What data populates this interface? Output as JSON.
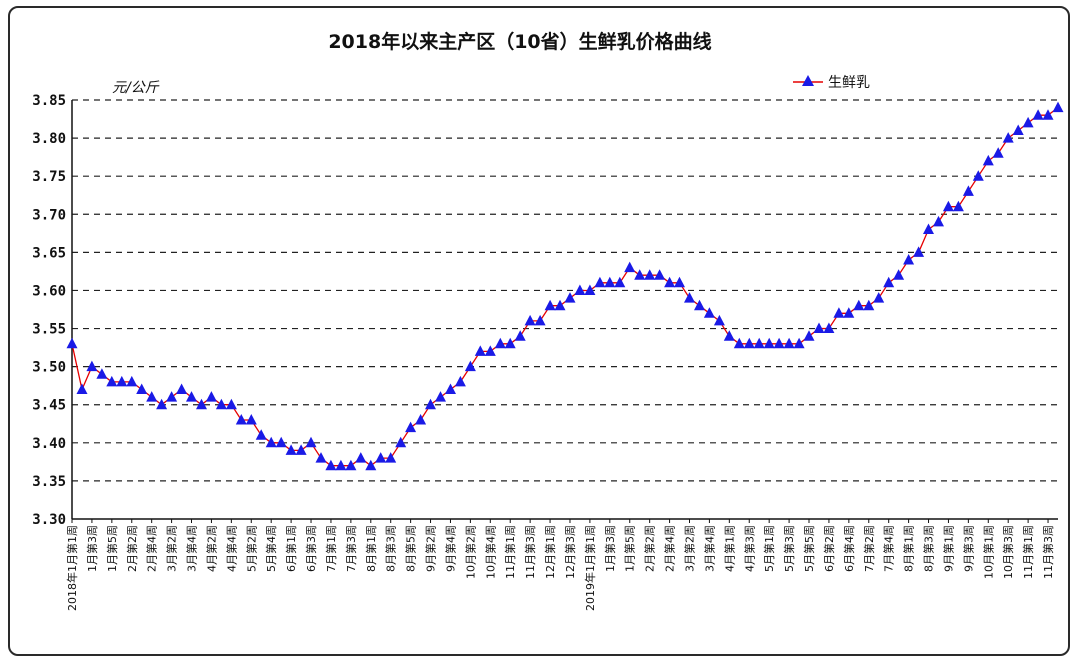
{
  "chart_data": {
    "type": "line",
    "title": "2018年以来主产区（10省）生鲜乳价格曲线",
    "ylabel": "元/公斤",
    "xlabel": "",
    "ylim": [
      3.3,
      3.85
    ],
    "ytick_step": 0.05,
    "ytick_labels": [
      "3.30",
      "3.35",
      "3.40",
      "3.45",
      "3.50",
      "3.55",
      "3.60",
      "3.65",
      "3.70",
      "3.75",
      "3.80",
      "3.85"
    ],
    "grid": true,
    "legend_position": "top-right",
    "series_color": "#1a1ae6",
    "line_color": "#e60000",
    "series": [
      {
        "name": "生鲜乳",
        "values": [
          3.53,
          3.47,
          3.5,
          3.49,
          3.48,
          3.48,
          3.48,
          3.47,
          3.46,
          3.45,
          3.46,
          3.47,
          3.46,
          3.45,
          3.46,
          3.45,
          3.45,
          3.43,
          3.43,
          3.41,
          3.4,
          3.4,
          3.39,
          3.39,
          3.4,
          3.38,
          3.37,
          3.37,
          3.37,
          3.38,
          3.37,
          3.38,
          3.38,
          3.4,
          3.42,
          3.43,
          3.45,
          3.46,
          3.47,
          3.48,
          3.5,
          3.52,
          3.52,
          3.53,
          3.53,
          3.54,
          3.56,
          3.56,
          3.58,
          3.58,
          3.59,
          3.6,
          3.6,
          3.61,
          3.61,
          3.61,
          3.63,
          3.62,
          3.62,
          3.62,
          3.61,
          3.61,
          3.59,
          3.58,
          3.57,
          3.56,
          3.54,
          3.53,
          3.53,
          3.53,
          3.53,
          3.53,
          3.53,
          3.53,
          3.54,
          3.55,
          3.55,
          3.57,
          3.57,
          3.58,
          3.58,
          3.59,
          3.61,
          3.62,
          3.64,
          3.65,
          3.68,
          3.69,
          3.71,
          3.71,
          3.73,
          3.75,
          3.77,
          3.78,
          3.8,
          3.81,
          3.82,
          3.83,
          3.83,
          3.84
        ]
      }
    ],
    "x_labels": [
      {
        "i": 0,
        "text": "2018年1月第1周"
      },
      {
        "i": 2,
        "text": "1月第3周"
      },
      {
        "i": 4,
        "text": "1月第5周"
      },
      {
        "i": 6,
        "text": "2月第2周"
      },
      {
        "i": 8,
        "text": "2月第4周"
      },
      {
        "i": 10,
        "text": "3月第2周"
      },
      {
        "i": 12,
        "text": "3月第4周"
      },
      {
        "i": 14,
        "text": "4月第2周"
      },
      {
        "i": 16,
        "text": "4月第4周"
      },
      {
        "i": 18,
        "text": "5月第2周"
      },
      {
        "i": 20,
        "text": "5月第4周"
      },
      {
        "i": 22,
        "text": "6月第1周"
      },
      {
        "i": 24,
        "text": "6月第3周"
      },
      {
        "i": 26,
        "text": "7月第1周"
      },
      {
        "i": 28,
        "text": "7月第3周"
      },
      {
        "i": 30,
        "text": "8月第1周"
      },
      {
        "i": 32,
        "text": "8月第3周"
      },
      {
        "i": 34,
        "text": "8月第5周"
      },
      {
        "i": 36,
        "text": "9月第2周"
      },
      {
        "i": 38,
        "text": "9月第4周"
      },
      {
        "i": 40,
        "text": "10月第2周"
      },
      {
        "i": 42,
        "text": "10月第4周"
      },
      {
        "i": 44,
        "text": "11月第1周"
      },
      {
        "i": 46,
        "text": "11月第3周"
      },
      {
        "i": 48,
        "text": "12月第1周"
      },
      {
        "i": 50,
        "text": "12月第3周"
      },
      {
        "i": 52,
        "text": "2019年1月第1周"
      },
      {
        "i": 54,
        "text": "1月第3周"
      },
      {
        "i": 56,
        "text": "1月第5周"
      },
      {
        "i": 58,
        "text": "2月第2周"
      },
      {
        "i": 60,
        "text": "2月第4周"
      },
      {
        "i": 62,
        "text": "3月第2周"
      },
      {
        "i": 64,
        "text": "3月第4周"
      },
      {
        "i": 66,
        "text": "4月第1周"
      },
      {
        "i": 68,
        "text": "4月第3周"
      },
      {
        "i": 70,
        "text": "5月第1周"
      },
      {
        "i": 72,
        "text": "5月第3周"
      },
      {
        "i": 74,
        "text": "5月第5周"
      },
      {
        "i": 76,
        "text": "6月第2周"
      },
      {
        "i": 78,
        "text": "6月第4周"
      },
      {
        "i": 80,
        "text": "7月第2周"
      },
      {
        "i": 82,
        "text": "7月第4周"
      },
      {
        "i": 84,
        "text": "8月第1周"
      },
      {
        "i": 86,
        "text": "8月第3周"
      },
      {
        "i": 88,
        "text": "9月第1周"
      },
      {
        "i": 90,
        "text": "9月第3周"
      },
      {
        "i": 92,
        "text": "10月第1周"
      },
      {
        "i": 94,
        "text": "10月第3周"
      },
      {
        "i": 96,
        "text": "11月第1周"
      },
      {
        "i": 98,
        "text": "11月第3周"
      }
    ]
  }
}
